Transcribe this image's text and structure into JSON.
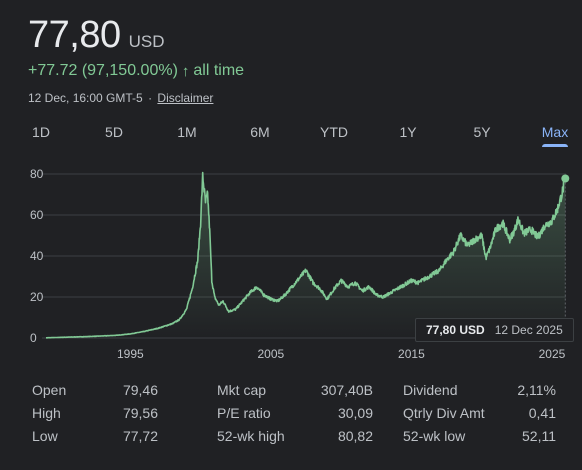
{
  "quote": {
    "price": "77,80",
    "currency": "USD",
    "change": "+77.72 (97,150.00%)",
    "arrow_icon": "up-arrow-icon",
    "period": "all time",
    "timestamp": "12 Dec, 16:00 GMT-5",
    "separator": "·",
    "disclaimer": "Disclaimer"
  },
  "tabs": [
    {
      "label": "1D"
    },
    {
      "label": "5D"
    },
    {
      "label": "1M"
    },
    {
      "label": "6M"
    },
    {
      "label": "YTD"
    },
    {
      "label": "1Y"
    },
    {
      "label": "5Y"
    },
    {
      "label": "Max",
      "active": true
    }
  ],
  "tooltip": {
    "price": "77,80 USD",
    "date": "12 Dec 2025"
  },
  "colors": {
    "line": "#81c995",
    "accent": "#8ab4f8",
    "background": "#202124"
  },
  "chart_data": {
    "type": "area",
    "x": [
      1989,
      1990,
      1991,
      1992,
      1993,
      1994,
      1995,
      1996,
      1997,
      1998,
      1998.5,
      1999,
      1999.4,
      1999.8,
      2000.0,
      2000.15,
      2000.35,
      2000.5,
      2000.65,
      2000.8,
      2001.0,
      2001.3,
      2001.6,
      2002.0,
      2002.5,
      2003.0,
      2003.5,
      2004.0,
      2004.5,
      2005.0,
      2005.5,
      2006.0,
      2006.5,
      2007.0,
      2007.5,
      2008.0,
      2008.5,
      2009.0,
      2009.5,
      2010.0,
      2010.5,
      2011.0,
      2011.5,
      2012.0,
      2012.5,
      2013.0,
      2013.5,
      2014.0,
      2014.5,
      2015.0,
      2015.5,
      2016.0,
      2016.5,
      2017.0,
      2017.5,
      2018.0,
      2018.5,
      2019.0,
      2019.5,
      2020.0,
      2020.3,
      2020.6,
      2021.0,
      2021.5,
      2022.0,
      2022.3,
      2022.6,
      2023.0,
      2023.5,
      2024.0,
      2024.5,
      2025.0,
      2025.4,
      2025.7,
      2025.95
    ],
    "values": [
      0.1,
      0.3,
      0.5,
      0.7,
      1.0,
      1.3,
      2.0,
      3.2,
      4.8,
      7.0,
      9.0,
      14.0,
      24.0,
      38.0,
      56.0,
      79.0,
      66.0,
      70.0,
      52.0,
      28.0,
      20.0,
      16.0,
      18.0,
      13.0,
      14.0,
      18.0,
      22.0,
      25.0,
      21.0,
      19.0,
      18.0,
      21.0,
      25.0,
      29.0,
      33.0,
      27.0,
      24.0,
      19.0,
      24.0,
      28.0,
      25.0,
      27.0,
      23.0,
      25.0,
      21.0,
      20.0,
      22.0,
      24.0,
      26.0,
      28.0,
      27.0,
      29.0,
      31.0,
      33.0,
      38.0,
      42.0,
      50.0,
      45.0,
      48.0,
      50.0,
      39.0,
      44.0,
      53.0,
      56.0,
      48.0,
      52.0,
      58.0,
      51.0,
      53.0,
      49.0,
      55.0,
      57.0,
      63.0,
      70.0,
      77.8
    ],
    "xticks": [
      "1995",
      "2005",
      "2015",
      "2025"
    ],
    "xtick_years": [
      1995,
      2005,
      2015,
      2025
    ],
    "yticks": [
      "0",
      "20",
      "40",
      "60",
      "80"
    ],
    "ytick_values": [
      0,
      20,
      40,
      60,
      80
    ],
    "xlim": [
      1989,
      2026
    ],
    "ylim": [
      0,
      80
    ],
    "grid": true,
    "title": "",
    "xlabel": "",
    "ylabel": ""
  },
  "stats": {
    "col1": [
      {
        "label": "Open",
        "value": "79,46"
      },
      {
        "label": "High",
        "value": "79,56"
      },
      {
        "label": "Low",
        "value": "77,72"
      }
    ],
    "col2": [
      {
        "label": "Mkt cap",
        "value": "307,40B"
      },
      {
        "label": "P/E ratio",
        "value": "30,09"
      },
      {
        "label": "52-wk high",
        "value": "80,82"
      }
    ],
    "col3": [
      {
        "label": "Dividend",
        "value": "2,11%"
      },
      {
        "label": "Qtrly Div Amt",
        "value": "0,41"
      },
      {
        "label": "52-wk low",
        "value": "52,11"
      }
    ]
  }
}
